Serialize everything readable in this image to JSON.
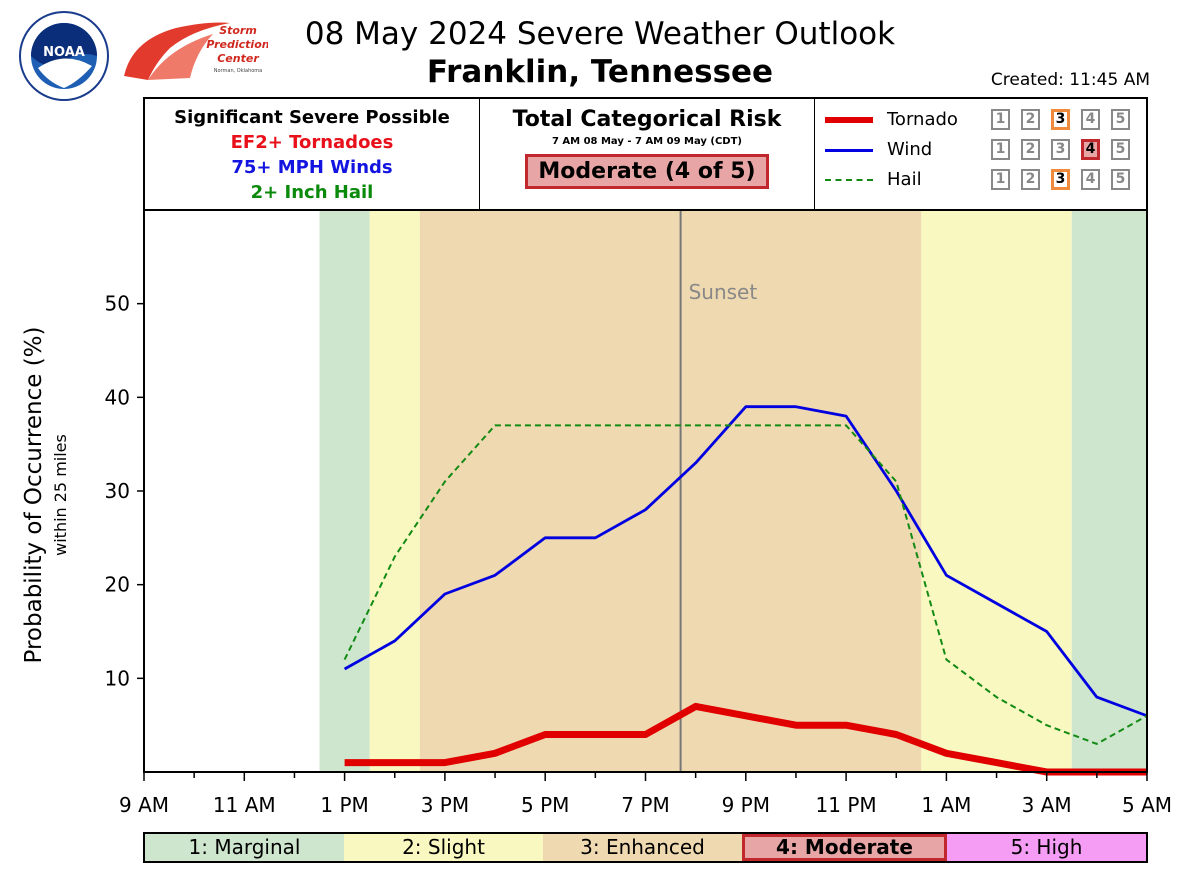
{
  "header": {
    "title": "08 May 2024 Severe Weather Outlook",
    "subtitle": "Franklin, Tennessee",
    "created": "Created: 11:45 AM",
    "noaa_logo_text": "NOAA",
    "spc_logo_text": [
      "Storm",
      "Prediction",
      "Center",
      "Norman, Oklahoma"
    ]
  },
  "significant": {
    "heading": "Significant Severe Possible",
    "lines": [
      {
        "text": "EF2+ Tornadoes",
        "color": "#e8101a"
      },
      {
        "text": "75+ MPH Winds",
        "color": "#1414e0"
      },
      {
        "text": "2+ Inch Hail",
        "color": "#0a8a0a"
      }
    ]
  },
  "risk": {
    "heading": "Total Categorical Risk",
    "dates": "7 AM 08 May - 7 AM 09 May (CDT)",
    "value": "Moderate (4 of 5)"
  },
  "legend": [
    {
      "name": "Tornado",
      "color": "#e00000",
      "style": "solid-thick",
      "levels": [
        "1",
        "2",
        "3",
        "4",
        "5"
      ],
      "active": 3
    },
    {
      "name": "Wind",
      "color": "#0000e0",
      "style": "solid",
      "levels": [
        "1",
        "2",
        "3",
        "4",
        "5"
      ],
      "active": 4
    },
    {
      "name": "Hail",
      "color": "#138a13",
      "style": "dashed",
      "levels": [
        "1",
        "2",
        "3",
        "4",
        "5"
      ],
      "active": 3
    }
  ],
  "categories_bar": [
    {
      "label": "1: Marginal",
      "color": "#cde6cd",
      "active": false
    },
    {
      "label": "2: Slight",
      "color": "#f8f8c0",
      "active": false
    },
    {
      "label": "3: Enhanced",
      "color": "#efd9b0",
      "active": false
    },
    {
      "label": "4: Moderate",
      "color": "#e8a5a5",
      "active": true
    },
    {
      "label": "5: High",
      "color": "#f59cf5",
      "active": false
    }
  ],
  "chart_data": {
    "type": "line",
    "ylabel": "Probability of Occurrence (%)",
    "ylabel_sub": "within 25 miles",
    "x_ticks": [
      "9 AM",
      "11 AM",
      "1 PM",
      "3 PM",
      "5 PM",
      "7 PM",
      "9 PM",
      "11 PM",
      "1 AM",
      "3 AM",
      "5 AM"
    ],
    "x_hours_range": [
      9,
      29
    ],
    "ylim": [
      0,
      60
    ],
    "y_ticks": [
      10,
      20,
      30,
      40,
      50
    ],
    "sunset_hour": 19.7,
    "sunset_label": "Sunset",
    "background_bands": [
      {
        "from": 12.5,
        "to": 13.5,
        "category": "Marginal",
        "color": "#cde6cd"
      },
      {
        "from": 13.5,
        "to": 14.5,
        "category": "Slight",
        "color": "#f8f8c0"
      },
      {
        "from": 14.5,
        "to": 24.5,
        "category": "Enhanced",
        "color": "#efd9b0"
      },
      {
        "from": 24.5,
        "to": 27.5,
        "category": "Slight",
        "color": "#f8f8c0"
      },
      {
        "from": 27.5,
        "to": 29,
        "category": "Marginal",
        "color": "#cde6cd"
      }
    ],
    "series": [
      {
        "name": "Tornado",
        "color": "#e00000",
        "width": 7,
        "dash": "",
        "x": [
          13,
          14,
          15,
          16,
          17,
          18,
          19,
          20,
          21,
          22,
          23,
          24,
          25,
          26,
          27,
          28,
          29
        ],
        "values": [
          1,
          1,
          1,
          2,
          4,
          4,
          4,
          7,
          6,
          5,
          5,
          4,
          2,
          1,
          0,
          0,
          0
        ]
      },
      {
        "name": "Wind",
        "color": "#0000e0",
        "width": 2.8,
        "dash": "",
        "x": [
          13,
          14,
          15,
          16,
          17,
          18,
          19,
          20,
          21,
          22,
          23,
          24,
          25,
          26,
          27,
          28,
          29
        ],
        "values": [
          11,
          14,
          19,
          21,
          25,
          25,
          28,
          33,
          39,
          39,
          38,
          30,
          21,
          18,
          15,
          8,
          6
        ]
      },
      {
        "name": "Hail",
        "color": "#138a13",
        "width": 2,
        "dash": "6,4",
        "x": [
          13,
          14,
          15,
          16,
          17,
          18,
          19,
          20,
          21,
          22,
          23,
          24,
          25,
          26,
          27,
          28,
          29
        ],
        "values": [
          12,
          23,
          31,
          37,
          37,
          37,
          37,
          37,
          37,
          37,
          37,
          31,
          12,
          8,
          5,
          3,
          6
        ]
      }
    ]
  }
}
